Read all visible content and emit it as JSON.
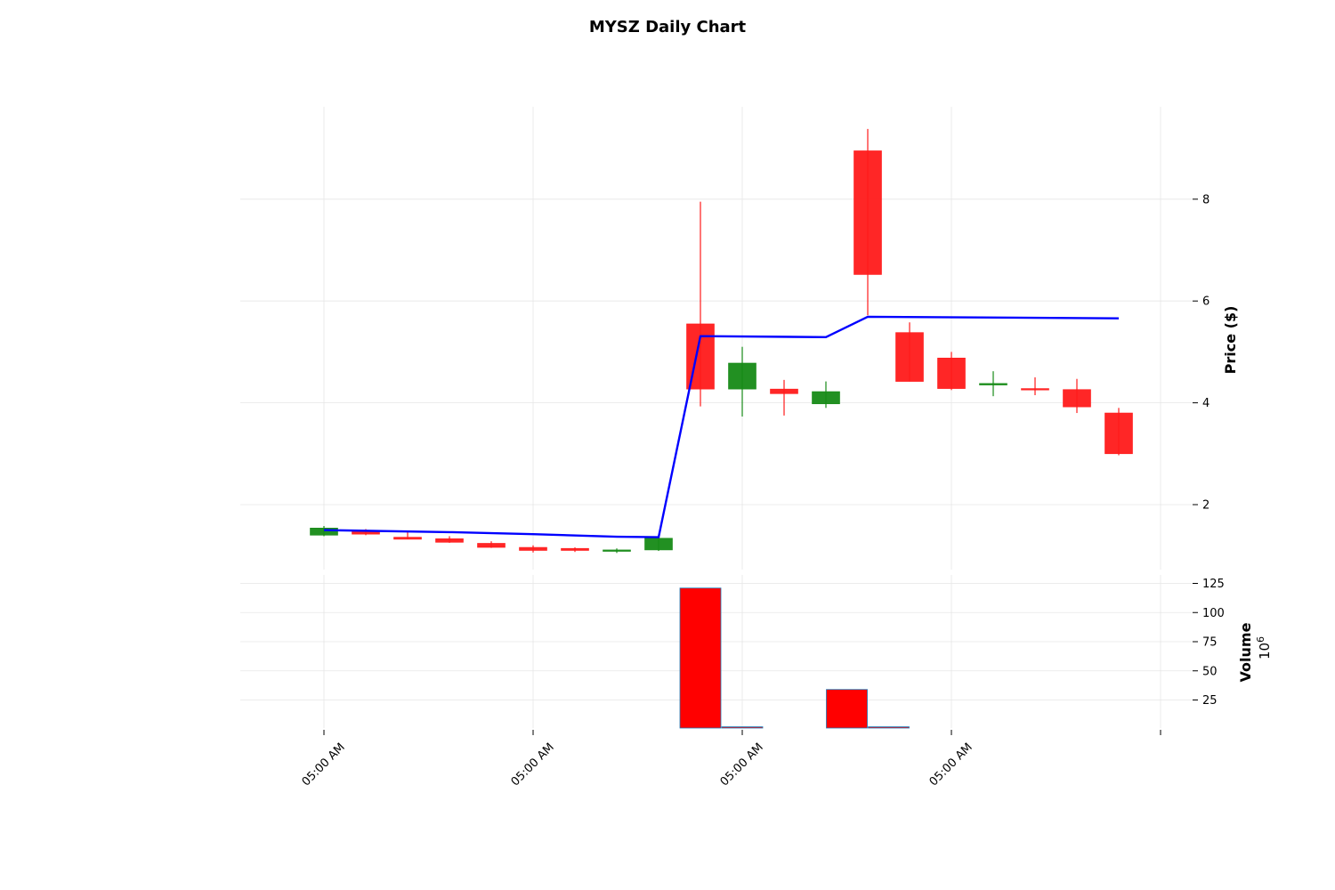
{
  "chart_data": {
    "type": "candlestick",
    "title": "MYSZ Daily Chart",
    "price_panel": {
      "ylabel": "Price ($)",
      "yticks": [
        2,
        4,
        6,
        8
      ],
      "ylim": [
        0.5,
        9.8
      ],
      "grid": true,
      "candles": [
        {
          "open": 1.4,
          "high": 1.58,
          "low": 1.38,
          "close": 1.54
        },
        {
          "open": 1.48,
          "high": 1.52,
          "low": 1.4,
          "close": 1.42
        },
        {
          "open": 1.36,
          "high": 1.46,
          "low": 1.32,
          "close": 1.32
        },
        {
          "open": 1.33,
          "high": 1.38,
          "low": 1.25,
          "close": 1.26
        },
        {
          "open": 1.24,
          "high": 1.28,
          "low": 1.15,
          "close": 1.16
        },
        {
          "open": 1.16,
          "high": 1.2,
          "low": 1.06,
          "close": 1.1
        },
        {
          "open": 1.14,
          "high": 1.16,
          "low": 1.07,
          "close": 1.1
        },
        {
          "open": 1.09,
          "high": 1.14,
          "low": 1.05,
          "close": 1.11
        },
        {
          "open": 1.11,
          "high": 1.36,
          "low": 1.09,
          "close": 1.34
        },
        {
          "open": 5.55,
          "high": 7.95,
          "low": 3.93,
          "close": 4.27
        },
        {
          "open": 4.27,
          "high": 5.1,
          "low": 3.73,
          "close": 4.78
        },
        {
          "open": 4.27,
          "high": 4.45,
          "low": 3.75,
          "close": 4.18
        },
        {
          "open": 3.98,
          "high": 4.42,
          "low": 3.9,
          "close": 4.22
        },
        {
          "open": 8.95,
          "high": 9.38,
          "low": 5.72,
          "close": 6.52
        },
        {
          "open": 5.38,
          "high": 5.58,
          "low": 4.42,
          "close": 4.42
        },
        {
          "open": 4.88,
          "high": 5.0,
          "low": 4.25,
          "close": 4.28
        },
        {
          "open": 4.35,
          "high": 4.62,
          "low": 4.13,
          "close": 4.38
        },
        {
          "open": 4.28,
          "high": 4.5,
          "low": 4.15,
          "close": 4.26
        },
        {
          "open": 4.26,
          "high": 4.47,
          "low": 3.8,
          "close": 3.92
        },
        {
          "open": 3.8,
          "high": 3.9,
          "low": 2.97,
          "close": 3.0
        }
      ],
      "moving_average": [
        {
          "index": 0,
          "value": 1.5
        },
        {
          "index": 3,
          "value": 1.46
        },
        {
          "index": 5,
          "value": 1.42
        },
        {
          "index": 7,
          "value": 1.37
        },
        {
          "index": 8,
          "value": 1.36
        },
        {
          "index": 9,
          "value": 5.31
        },
        {
          "index": 12,
          "value": 5.29
        },
        {
          "index": 13,
          "value": 5.69
        },
        {
          "index": 19,
          "value": 5.66
        }
      ]
    },
    "volume_panel": {
      "ylabel": "Volume",
      "exponent": "6",
      "yticks": [
        25,
        50,
        75,
        100,
        125
      ],
      "ylim": [
        2,
        127
      ],
      "bars": [
        {
          "position": 9.0,
          "value": 121
        },
        {
          "position": 10.0,
          "value": 2
        },
        {
          "position": 12.5,
          "value": 34
        },
        {
          "position": 13.5,
          "value": 2
        }
      ]
    },
    "x_axis": {
      "tick_positions": [
        0,
        5,
        10,
        15,
        20
      ],
      "tick_labels": [
        "05:00 AM",
        "05:00 AM",
        "05:00 AM",
        "05:00 AM",
        ""
      ]
    },
    "colors": {
      "up": "#168a16",
      "down": "#ff1a1a",
      "volume_down": "#ff0000",
      "volume_edge": "#1f77b4",
      "moving_average": "#0000ff"
    }
  }
}
